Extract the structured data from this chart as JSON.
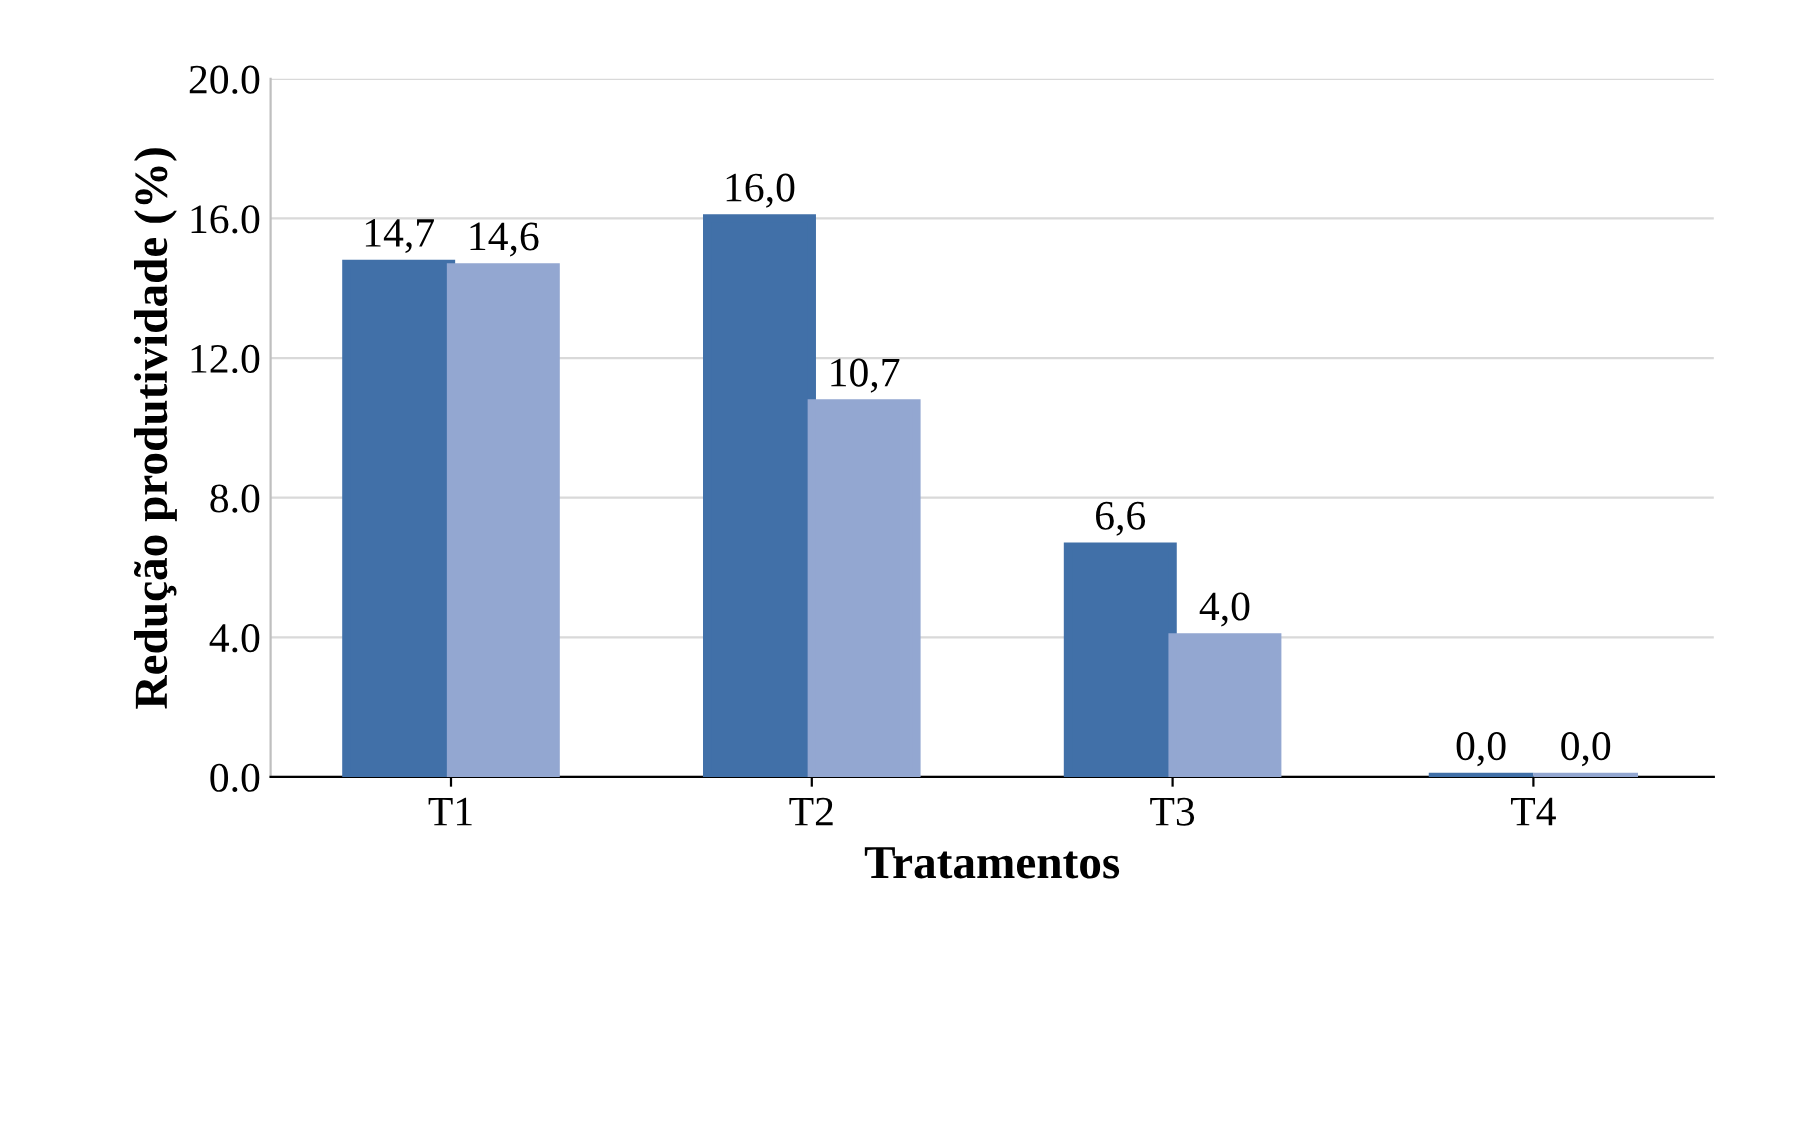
{
  "chart_data": {
    "type": "bar",
    "xlabel": "Tratamentos",
    "ylabel": "Redução produtividade (%)",
    "categories": [
      "T1",
      "T2",
      "T3",
      "T4"
    ],
    "series": [
      {
        "color": "#4170a8",
        "values": [
          14.7,
          16.0,
          6.6,
          0.0
        ],
        "value_labels": [
          "14,7",
          "16,0",
          "6,6",
          "0,0"
        ]
      },
      {
        "color": "#93a7d1",
        "values": [
          14.6,
          10.7,
          4.0,
          0.0
        ],
        "value_labels": [
          "14,6",
          "10,7",
          "4,0",
          "0,0"
        ]
      }
    ],
    "ylim": [
      0,
      20
    ],
    "yticks": [
      {
        "value": 0,
        "label": "0.0"
      },
      {
        "value": 4,
        "label": "4.0"
      },
      {
        "value": 8,
        "label": "8.0"
      },
      {
        "value": 12,
        "label": "12.0"
      },
      {
        "value": 16,
        "label": "16.0"
      },
      {
        "value": 20,
        "label": "20.0"
      }
    ],
    "grid": "y"
  }
}
